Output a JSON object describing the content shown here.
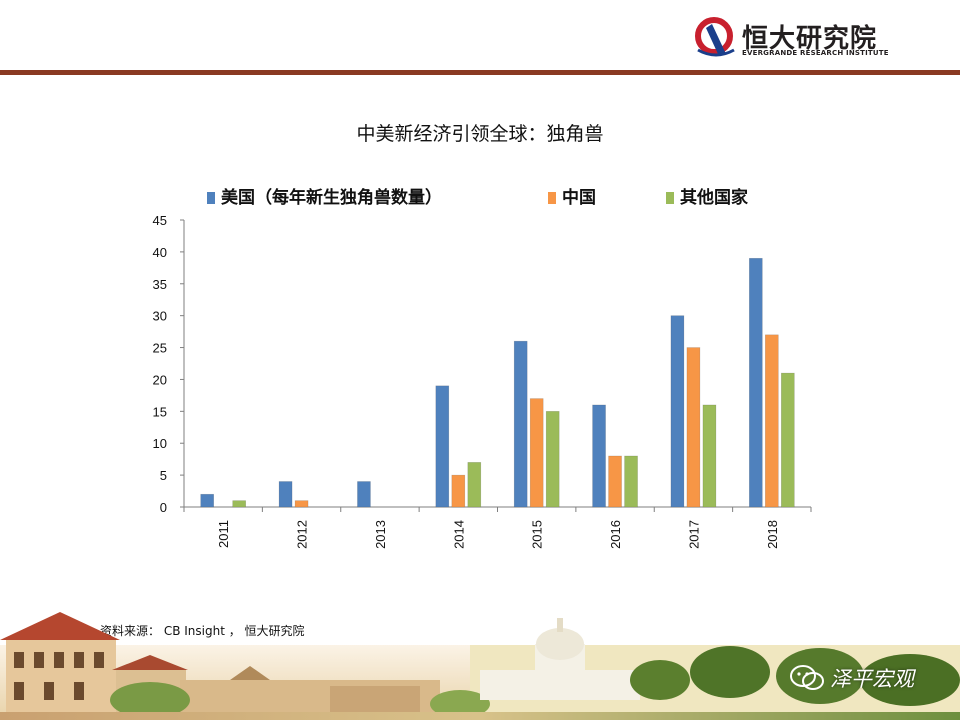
{
  "header": {
    "logo_cn": "恒大研究院",
    "logo_en": "EVERGRANDE RESEARCH INSTITUTE"
  },
  "title": "中美新经济引领全球：独角兽",
  "source": "资料来源：   CB Insight ， 恒大研究院",
  "watermark": "泽平宏观",
  "colors": {
    "header_rule": "#8a3a22",
    "usa": "#4f81bd",
    "china": "#f79646",
    "other": "#9bbb59"
  },
  "chart_data": {
    "type": "bar",
    "categories": [
      "2011",
      "2012",
      "2013",
      "2014",
      "2015",
      "2016",
      "2017",
      "2018"
    ],
    "series": [
      {
        "name": "美国（每年新生独角兽数量）",
        "values": [
          2,
          4,
          4,
          19,
          26,
          16,
          30,
          39
        ]
      },
      {
        "name": "中国",
        "values": [
          0,
          1,
          0,
          5,
          17,
          8,
          25,
          27
        ]
      },
      {
        "name": "其他国家",
        "values": [
          1,
          0,
          0,
          7,
          15,
          8,
          16,
          21
        ]
      }
    ],
    "title": "中美新经济引领全球：独角兽",
    "xlabel": "",
    "ylabel": "",
    "ylim": [
      0,
      45
    ],
    "yticks": [
      0,
      5,
      10,
      15,
      20,
      25,
      30,
      35,
      40,
      45
    ],
    "grid": false,
    "legend_position": "top"
  }
}
